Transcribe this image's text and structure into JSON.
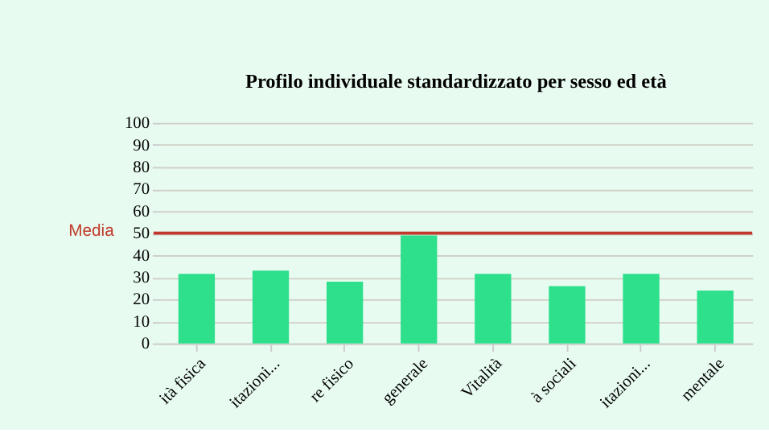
{
  "chart_data": {
    "type": "bar",
    "title": "Profilo individuale standardizzato per sesso ed età",
    "categories": [
      "ità fisica",
      "itazioni...",
      "re fisico",
      "generale",
      "Vitalità",
      "à sociali",
      "itazioni...",
      "mentale"
    ],
    "values": [
      31.5,
      33,
      28,
      49,
      31.5,
      26,
      31.5,
      24
    ],
    "color": "#2ee08c",
    "ylim": [
      0,
      100
    ],
    "yticks": [
      0,
      10,
      20,
      30,
      40,
      50,
      60,
      70,
      80,
      90,
      100
    ],
    "grid": "y",
    "ref_lines": [
      {
        "axis": "y",
        "value": 50,
        "label": "Media",
        "color": "#c0392b"
      }
    ]
  }
}
